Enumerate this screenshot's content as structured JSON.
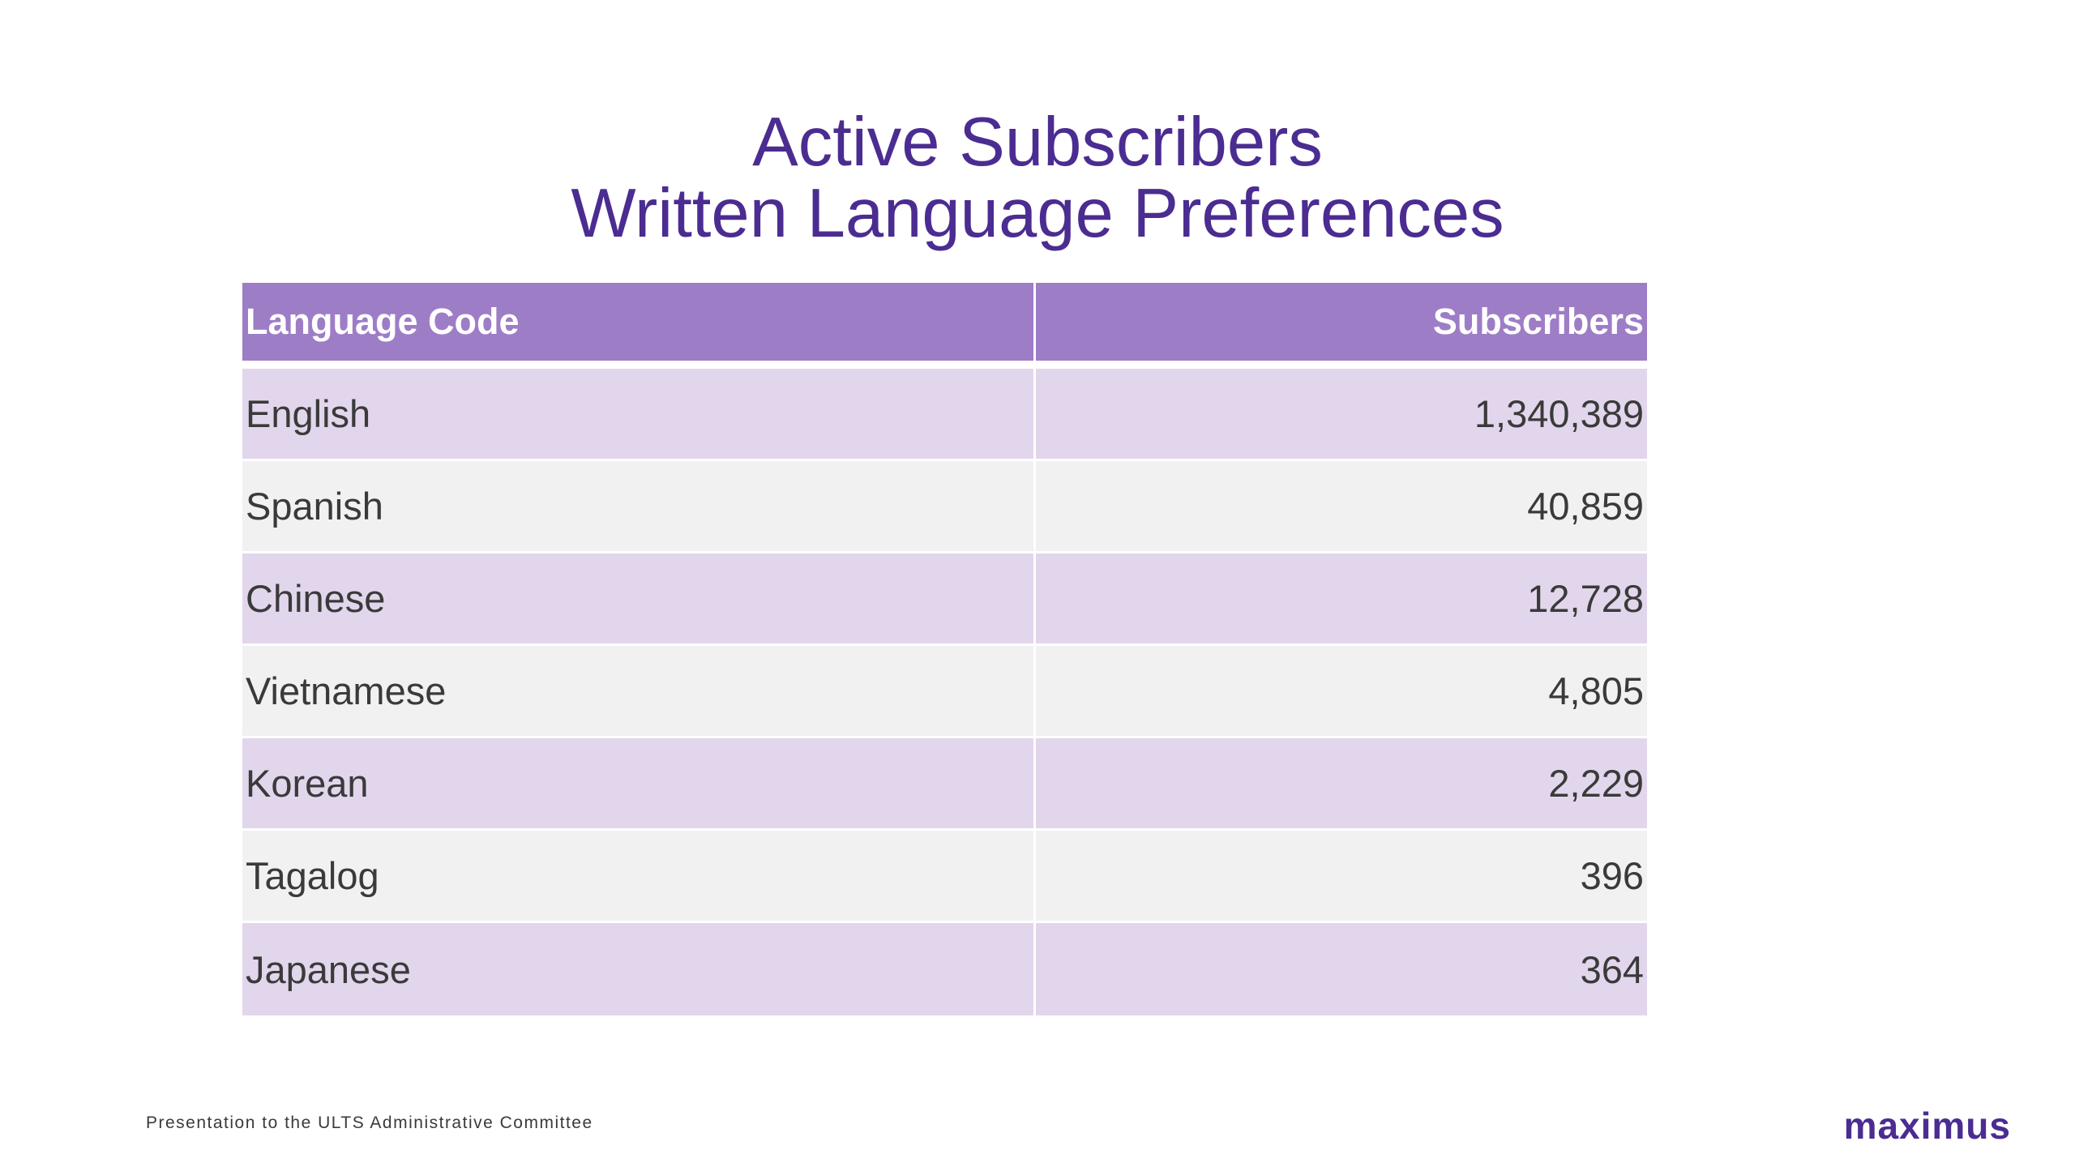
{
  "title": {
    "line1": "Active Subscribers",
    "line2": "Written Language Preferences"
  },
  "table": {
    "columns": [
      "Language Code",
      "Subscribers"
    ],
    "rows": [
      {
        "language": "English",
        "subscribers": "1,340,389"
      },
      {
        "language": "Spanish",
        "subscribers": "40,859"
      },
      {
        "language": "Chinese",
        "subscribers": "12,728"
      },
      {
        "language": "Vietnamese",
        "subscribers": "4,805"
      },
      {
        "language": "Korean",
        "subscribers": "2,229"
      },
      {
        "language": "Tagalog",
        "subscribers": "396"
      },
      {
        "language": "Japanese",
        "subscribers": "364"
      }
    ]
  },
  "footer": {
    "text": "Presentation to the ULTS Administrative Committee",
    "logo": "maximus"
  },
  "colors": {
    "title": "#4b2c91",
    "header_bg": "#9e7dc7",
    "row_odd": "#e2d6ec",
    "row_even": "#f1f1f1"
  }
}
